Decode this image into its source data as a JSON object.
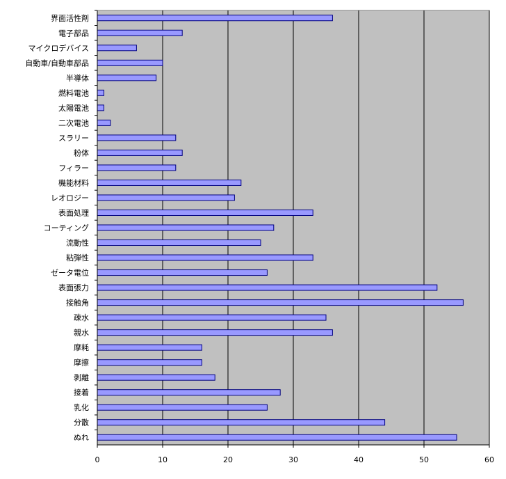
{
  "chart_data": {
    "type": "bar",
    "orientation": "horizontal",
    "categories": [
      "界面活性剤",
      "電子部品",
      "マイクロデバイス",
      "自動車/自動車部品",
      "半導体",
      "燃料電池",
      "太陽電池",
      "二次電池",
      "スラリー",
      "粉体",
      "フィラー",
      "機能材料",
      "レオロジー",
      "表面処理",
      "コーティング",
      "流動性",
      "粘弾性",
      "ゼータ電位",
      "表面張力",
      "接触角",
      "疎水",
      "親水",
      "摩耗",
      "摩擦",
      "剥離",
      "接着",
      "乳化",
      "分散",
      "ぬれ"
    ],
    "values": [
      36,
      13,
      6,
      10,
      9,
      1,
      1,
      2,
      12,
      13,
      12,
      22,
      21,
      33,
      27,
      25,
      33,
      26,
      52,
      56,
      35,
      36,
      16,
      16,
      18,
      28,
      26,
      44,
      55
    ],
    "xlim": [
      0,
      60
    ],
    "xticks": [
      0,
      10,
      20,
      30,
      40,
      50,
      60
    ],
    "grid": true,
    "legend": "none",
    "colors": {
      "bar_fill": "#9999ff",
      "bar_stroke": "#000080",
      "plot_bg": "#c0c0c0",
      "gridline": "#000000"
    }
  }
}
